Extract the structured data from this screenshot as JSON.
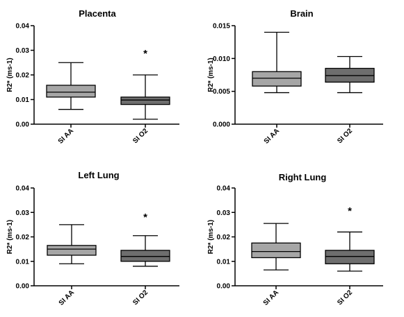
{
  "chart_data": [
    {
      "type": "box",
      "title": "Placenta",
      "ylabel": "R2* (ms-1)",
      "ylim": [
        0,
        0.04
      ],
      "yticks": [
        "0.00",
        "0.01",
        "0.02",
        "0.03",
        "0.04"
      ],
      "categories": [
        "SI AA",
        "SI O2"
      ],
      "boxes": [
        {
          "category": "SI AA",
          "min": 0.006,
          "q1": 0.011,
          "median": 0.013,
          "q3": 0.0158,
          "max": 0.025,
          "color": "#a6a6a6"
        },
        {
          "category": "SI O2",
          "min": 0.002,
          "q1": 0.008,
          "median": 0.0098,
          "q3": 0.011,
          "max": 0.02,
          "color": "#6e6e6e"
        }
      ],
      "annotation": "*"
    },
    {
      "type": "box",
      "title": "Brain",
      "ylabel": "R2* (ms-1)",
      "ylim": [
        0,
        0.015
      ],
      "yticks": [
        "0.000",
        "0.005",
        "0.010",
        "0.015"
      ],
      "categories": [
        "SI AA",
        "SI O2"
      ],
      "boxes": [
        {
          "category": "SI AA",
          "min": 0.0048,
          "q1": 0.0058,
          "median": 0.007,
          "q3": 0.008,
          "max": 0.014,
          "color": "#a6a6a6"
        },
        {
          "category": "SI O2",
          "min": 0.0048,
          "q1": 0.0064,
          "median": 0.0074,
          "q3": 0.0085,
          "max": 0.0103,
          "color": "#6e6e6e"
        }
      ],
      "annotation": ""
    },
    {
      "type": "box",
      "title": "Left Lung",
      "ylabel": "R2* (ms-1)",
      "ylim": [
        0,
        0.04
      ],
      "yticks": [
        "0.00",
        "0.01",
        "0.02",
        "0.03",
        "0.04"
      ],
      "categories": [
        "SI AA",
        "SI O2"
      ],
      "boxes": [
        {
          "category": "SI AA",
          "min": 0.009,
          "q1": 0.0125,
          "median": 0.015,
          "q3": 0.0165,
          "max": 0.025,
          "color": "#a6a6a6"
        },
        {
          "category": "SI O2",
          "min": 0.008,
          "q1": 0.01,
          "median": 0.012,
          "q3": 0.0145,
          "max": 0.0205,
          "color": "#6e6e6e"
        }
      ],
      "annotation": "*"
    },
    {
      "type": "box",
      "title": "Right Lung",
      "ylabel": "R2* (ms-1)",
      "ylim": [
        0,
        0.04
      ],
      "yticks": [
        "0.00",
        "0.01",
        "0.02",
        "0.03",
        "0.04"
      ],
      "categories": [
        "SI AA",
        "SI O2"
      ],
      "boxes": [
        {
          "category": "SI AA",
          "min": 0.0065,
          "q1": 0.0115,
          "median": 0.014,
          "q3": 0.0175,
          "max": 0.0255,
          "color": "#a6a6a6"
        },
        {
          "category": "SI O2",
          "min": 0.006,
          "q1": 0.009,
          "median": 0.012,
          "q3": 0.0145,
          "max": 0.022,
          "color": "#6e6e6e"
        }
      ],
      "annotation": "*"
    }
  ]
}
